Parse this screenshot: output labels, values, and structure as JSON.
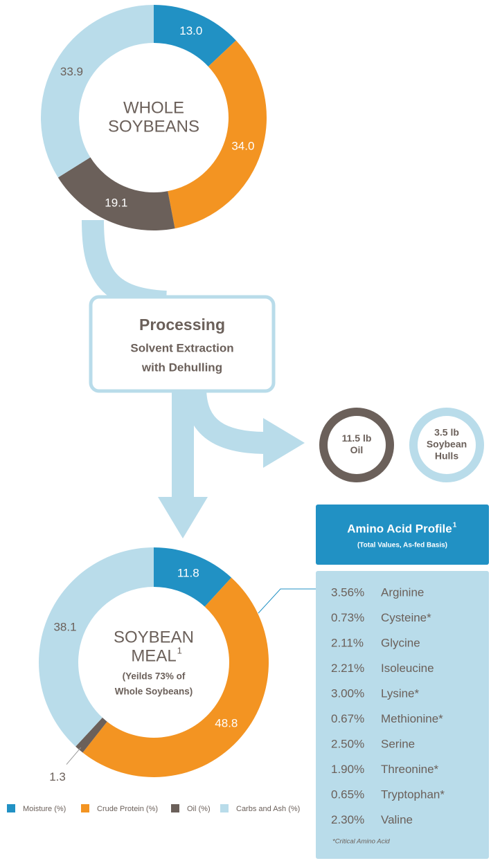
{
  "chart_data": [
    {
      "type": "pie",
      "donut": true,
      "title": [
        "WHOLE",
        "SOYBEANS"
      ],
      "categories": [
        "Moisture (%)",
        "Crude Protein (%)",
        "Oil (%)",
        "Carbs and Ash (%)"
      ],
      "values": [
        13.0,
        34.0,
        19.1,
        33.9
      ],
      "value_labels": [
        "13.0",
        "34.0",
        "19.1",
        "33.9"
      ],
      "colors": [
        "#2191c4",
        "#f39422",
        "#6b605a",
        "#b9dcea"
      ]
    },
    {
      "type": "pie",
      "donut": true,
      "title": [
        "SOYBEAN",
        "MEAL"
      ],
      "title_superscript": "1",
      "subtitle": [
        "(Yeilds 73% of",
        "Whole Soybeans)"
      ],
      "categories": [
        "Moisture (%)",
        "Crude Protein (%)",
        "Oil (%)",
        "Carbs and Ash (%)"
      ],
      "values": [
        11.8,
        48.8,
        1.3,
        38.1
      ],
      "colors": [
        "#2191c4",
        "#f39422",
        "#6b605a",
        "#b9dcea"
      ]
    }
  ],
  "processing": {
    "title": "Processing",
    "lines": [
      "Solvent Extraction",
      "with Dehulling"
    ]
  },
  "outputs": [
    {
      "lines": [
        "11.5 lb",
        "Oil"
      ],
      "color": "#6b605a"
    },
    {
      "lines": [
        "3.5 lb",
        "Soybean",
        "Hulls"
      ],
      "color": "#b9dcea"
    }
  ],
  "amino_acids": {
    "title": "Amino Acid Profile",
    "title_superscript": "1",
    "subtitle": "(Total Values, As-fed Basis)",
    "rows": [
      [
        "3.56%",
        "Arginine"
      ],
      [
        "0.73%",
        "Cysteine*"
      ],
      [
        "2.11%",
        "Glycine"
      ],
      [
        "2.21%",
        "Isoleucine"
      ],
      [
        "3.00%",
        "Lysine*"
      ],
      [
        "0.67%",
        "Methionine*"
      ],
      [
        "2.50%",
        "Serine"
      ],
      [
        "1.90%",
        "Threonine*"
      ],
      [
        "0.65%",
        "Tryptophan*"
      ],
      [
        "2.30%",
        "Valine"
      ]
    ],
    "footnote": "*Critical Amino Acid"
  }
}
